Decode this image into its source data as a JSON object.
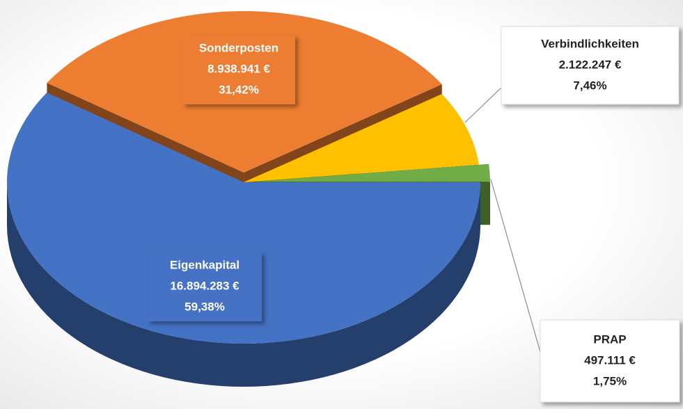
{
  "chart_data": {
    "type": "pie",
    "categories": [
      "Eigenkapital",
      "Sonderposten",
      "Verbindlichkeiten",
      "PRAP"
    ],
    "values": [
      16894283,
      8938941,
      2122247,
      497111
    ],
    "value_labels": [
      "16.894.283 €",
      "8.938.941 €",
      "2.122.247 €",
      "497.111 €"
    ],
    "percentages": [
      59.38,
      31.42,
      7.46,
      1.75
    ],
    "percentage_labels": [
      "59,38%",
      "31,42%",
      "7,46%",
      "1,75%"
    ],
    "colors": [
      "#4472c4",
      "#ed7d31",
      "#ffc000",
      "#70ad47"
    ]
  }
}
